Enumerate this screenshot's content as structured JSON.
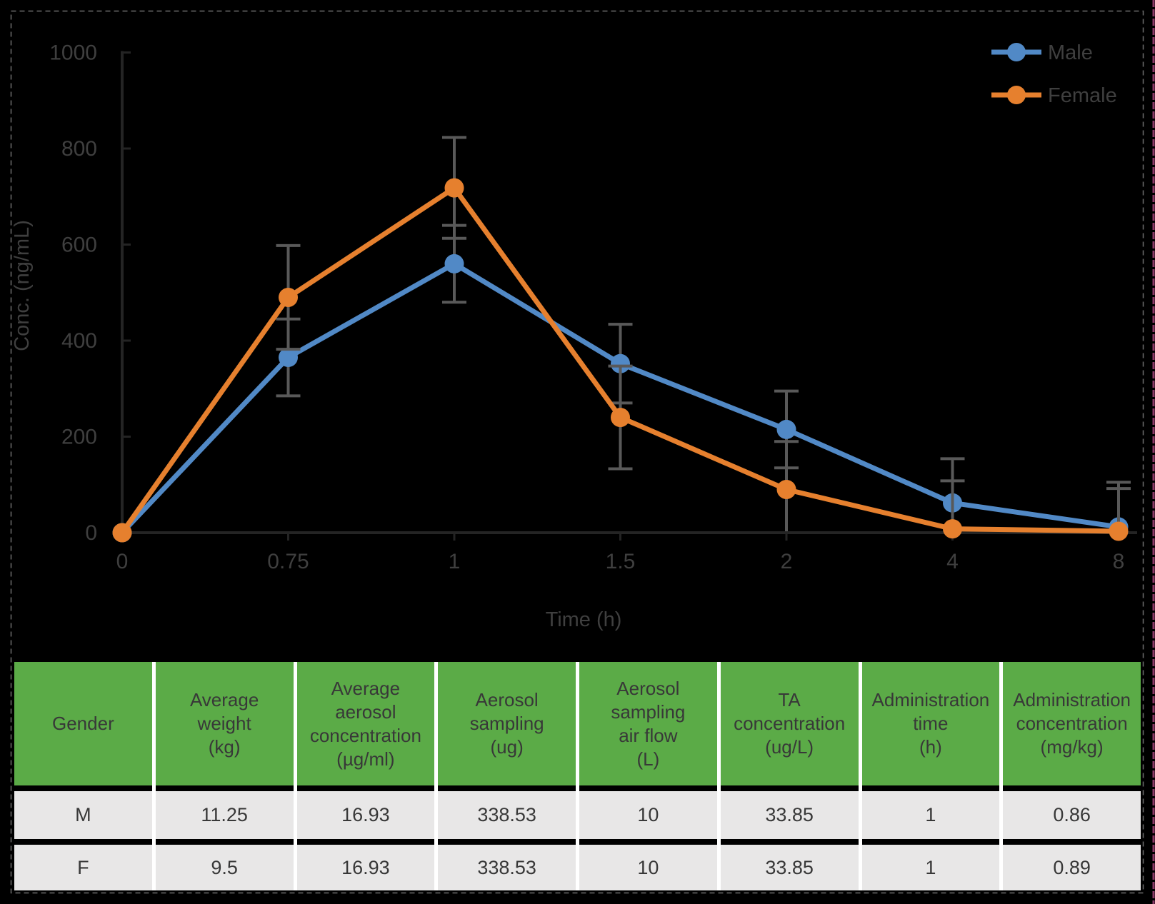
{
  "page": {
    "background": "#000000",
    "dashed_border_color": "#6E6E6E",
    "right_edge_marker_color": "#8D3A67"
  },
  "chart_data": {
    "type": "line",
    "title": "",
    "xlabel": "Time (h)",
    "ylabel": "Conc. (ng/mL)",
    "categories": [
      "0",
      "0.75",
      "1",
      "1.5",
      "2",
      "4",
      "8"
    ],
    "yticks": [
      0,
      200,
      400,
      600,
      800,
      1000
    ],
    "ylim": [
      0,
      1000
    ],
    "grid": false,
    "legend_position": "top-right",
    "legend_entries": [
      "Male",
      "Female"
    ],
    "series": [
      {
        "name": "Male",
        "color": "#5189C6",
        "values": [
          0,
          365,
          560,
          352,
          215,
          62,
          12
        ],
        "errors": [
          0,
          80,
          80,
          82,
          80,
          92,
          93
        ]
      },
      {
        "name": "Female",
        "color": "#E6802E",
        "values": [
          0,
          490,
          718,
          240,
          90,
          8,
          3
        ],
        "errors": [
          0,
          108,
          105,
          107,
          100,
          100,
          89
        ]
      }
    ],
    "error_bar_color": "#595959",
    "axis_color": "#242424",
    "text_color": "#3F3F3F"
  },
  "table": {
    "header_bg": "#5BAB47",
    "row_bg": "#E8E7E7",
    "text_color": "#383838",
    "headers": [
      "Gender",
      "Average\nweight\n(kg)",
      "Average\naerosol\nconcentration\n(µg/ml)",
      "Aerosol\nsampling\n(ug)",
      "Aerosol\nsampling\nair flow\n(L)",
      "TA\nconcentration\n(ug/L)",
      "Administration\ntime\n(h)",
      "Administration\nconcentration\n(mg/kg)"
    ],
    "rows": [
      {
        "cells": [
          "M",
          "11.25",
          "16.93",
          "338.53",
          "10",
          "33.85",
          "1",
          "0.86"
        ]
      },
      {
        "cells": [
          "F",
          "9.5",
          "16.93",
          "338.53",
          "10",
          "33.85",
          "1",
          "0.89"
        ]
      }
    ]
  }
}
